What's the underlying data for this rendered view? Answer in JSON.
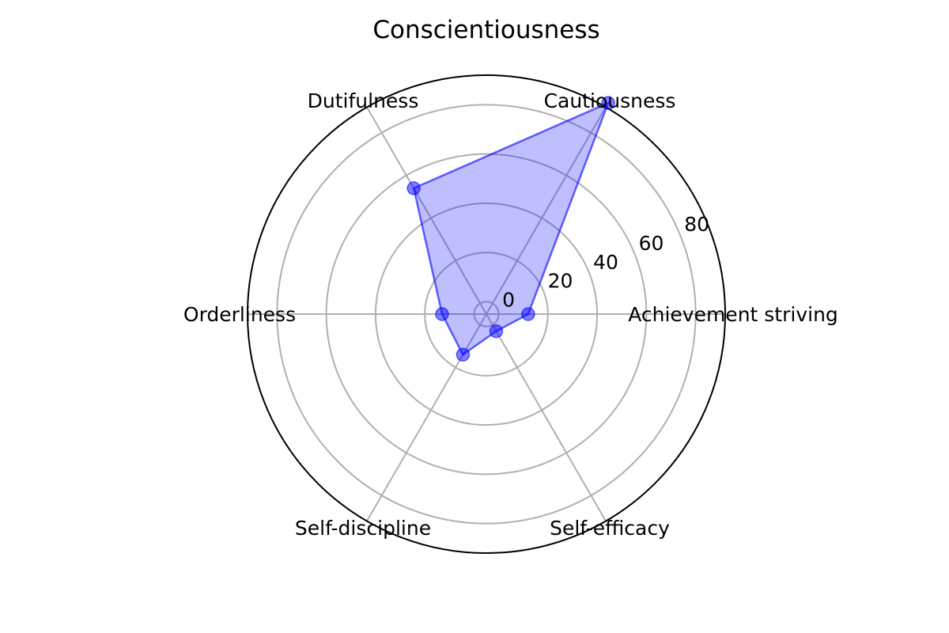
{
  "chart_data": {
    "type": "radar",
    "title": "Conscientiousness",
    "categories": [
      "Achievement striving",
      "Cautiousness",
      "Dutifulness",
      "Orderliness",
      "Self-discipline",
      "Self-efficacy"
    ],
    "series": [
      {
        "values": [
          12,
          94,
          54,
          13,
          14,
          3
        ],
        "color": "#0000ff"
      }
    ],
    "r_ticks": [
      0,
      20,
      40,
      60,
      80
    ],
    "rlim": [
      -5,
      92
    ],
    "grid": true
  }
}
